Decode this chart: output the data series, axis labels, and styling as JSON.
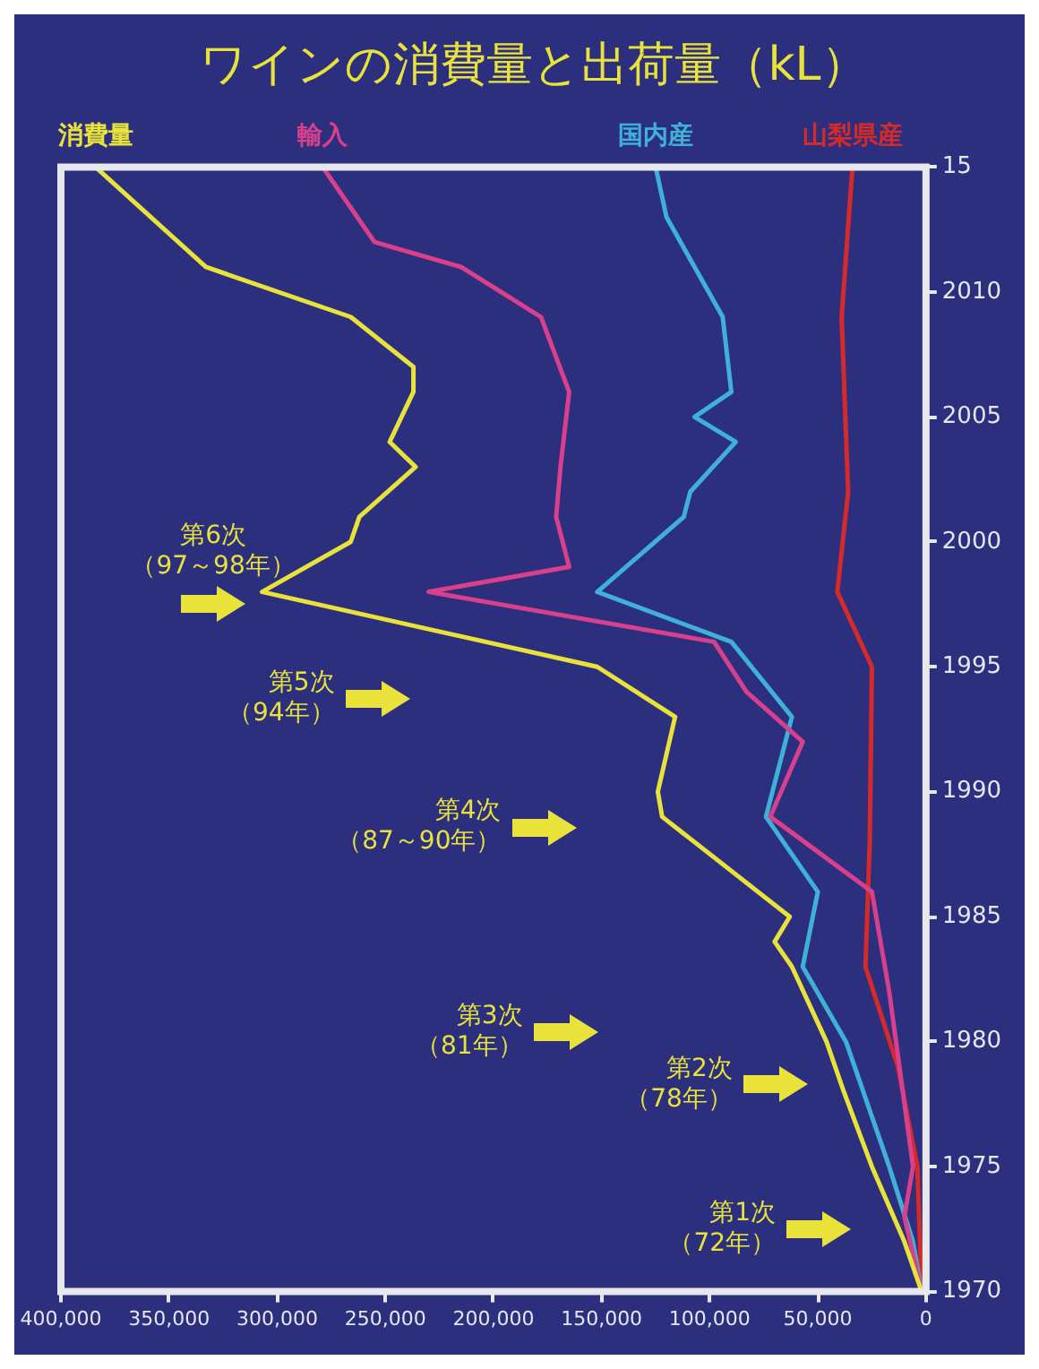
{
  "chart_data": {
    "type": "line",
    "title": "ワインの消費量と出荷量（kL）",
    "ylim": [
      1970,
      2015
    ],
    "yticks": [
      1970,
      1975,
      1980,
      1985,
      1990,
      1995,
      2000,
      2005,
      2010,
      {
        "value": 2015,
        "label": "15"
      }
    ],
    "xlim": [
      400000,
      0
    ],
    "xticks": [
      {
        "value": 0,
        "label": "0"
      },
      {
        "value": 50000,
        "label": "50,000"
      },
      {
        "value": 100000,
        "label": "100,000"
      },
      {
        "value": 150000,
        "label": "150,000"
      },
      {
        "value": 200000,
        "label": "200,000"
      },
      {
        "value": 250000,
        "label": "250,000"
      },
      {
        "value": 300000,
        "label": "300,000"
      },
      {
        "value": 350000,
        "label": "350,000"
      },
      {
        "value": 400000,
        "label": "400,000"
      }
    ],
    "grid": false,
    "legend": false,
    "marker": "none",
    "series": [
      {
        "name": "消費量",
        "color": "#e8e23a",
        "values": [
          1970,
          1972,
          1975,
          1978,
          1980,
          1983,
          1984,
          1985,
          1989,
          1990,
          1993,
          1995,
          1998,
          2000,
          2001,
          2003,
          2004,
          2006,
          2007,
          2009,
          2011,
          2015
        ],
        "x": [
          2000,
          10000,
          25000,
          38000,
          46000,
          62000,
          70000,
          63000,
          122000,
          124000,
          116000,
          152000,
          307000,
          266000,
          262000,
          236000,
          248000,
          237000,
          237000,
          266000,
          333000,
          384000
        ]
      },
      {
        "name": "輸入",
        "color": "#d8408c",
        "values": [
          1970,
          1973,
          1975,
          1982,
          1986,
          1989,
          1992,
          1994,
          1996,
          1998,
          1999,
          2001,
          2003,
          2006,
          2009,
          2011,
          2012,
          2015
        ],
        "x": [
          2000,
          10000,
          6000,
          17000,
          25000,
          72000,
          57000,
          83000,
          98000,
          230000,
          165000,
          171000,
          169000,
          165000,
          178000,
          215000,
          255000,
          279000
        ]
      },
      {
        "name": "国内産",
        "color": "#3fb0d6",
        "values": [
          1970,
          1972,
          1975,
          1977,
          1980,
          1983,
          1986,
          1989,
          1993,
          1996,
          1998,
          2001,
          2002,
          2004,
          2005,
          2006,
          2009,
          2013,
          2015
        ],
        "x": [
          2000,
          6000,
          17000,
          25000,
          37000,
          57000,
          50000,
          74000,
          62000,
          90000,
          152000,
          112000,
          109000,
          88000,
          107000,
          90000,
          94000,
          120000,
          125000
        ]
      },
      {
        "name": "山梨県産",
        "color": "#d42a2a",
        "values": [
          1970,
          1975,
          1979,
          1983,
          1988,
          1995,
          1998,
          2002,
          2009,
          2015
        ],
        "x": [
          2000,
          4000,
          13000,
          28000,
          26000,
          25000,
          41000,
          36000,
          39000,
          34000
        ]
      }
    ],
    "annotations": [
      "第1次（72年）",
      "第2次（78年）",
      "第3次（81年）",
      "第4次（87～90年）",
      "第5次（94年）",
      "第6次（97～98年）"
    ]
  }
}
